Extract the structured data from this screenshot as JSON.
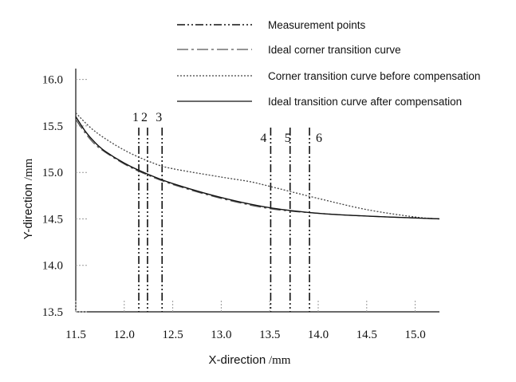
{
  "chart_data": {
    "type": "line",
    "title": "",
    "xlabel_main": "X-direction",
    "xlabel_unit": "/mm",
    "ylabel_main": "Y-direction",
    "ylabel_unit": "/mm",
    "xlim": [
      11.5,
      15.25
    ],
    "ylim": [
      13.5,
      16.1
    ],
    "x_ticks": [
      11.5,
      12.0,
      12.5,
      13.0,
      13.5,
      14.0,
      14.5,
      15.0
    ],
    "x_tick_labels": [
      "11.5",
      "12.0",
      "12.5",
      "13.0",
      "13.5",
      "14.0",
      "14.5",
      "15.0"
    ],
    "y_ticks": [
      13.5,
      14.0,
      14.5,
      15.0,
      15.5,
      16.0
    ],
    "y_tick_labels": [
      "13.5",
      "14.0",
      "14.5",
      "15.0",
      "15.5",
      "16.0"
    ],
    "grid": false,
    "legend_position": "top",
    "series": [
      {
        "name": "Measurement points",
        "kind": "vlines",
        "color": "#111111",
        "labels": [
          "1",
          "2",
          "3",
          "4",
          "5",
          "6"
        ],
        "x": [
          12.15,
          12.24,
          12.39,
          13.51,
          13.71,
          13.91
        ]
      },
      {
        "name": "Ideal corner transition curve",
        "kind": "line",
        "style": "dashdot-long",
        "color": "#555555",
        "x": [
          11.5,
          11.6,
          11.7,
          11.8,
          12.0,
          12.2,
          12.5,
          13.0,
          13.5,
          14.0,
          14.5,
          15.0,
          15.25
        ],
        "y": [
          15.57,
          15.42,
          15.3,
          15.22,
          15.09,
          14.99,
          14.87,
          14.72,
          14.61,
          14.56,
          14.53,
          14.51,
          14.5
        ]
      },
      {
        "name": "Corner transition curve before compensation",
        "kind": "line",
        "style": "dotted",
        "color": "#444444",
        "x": [
          11.5,
          11.7,
          12.0,
          12.3,
          12.5,
          13.0,
          13.3,
          13.5,
          14.0,
          14.5,
          15.0,
          15.25
        ],
        "y": [
          15.64,
          15.44,
          15.24,
          15.1,
          15.04,
          14.95,
          14.9,
          14.85,
          14.72,
          14.6,
          14.52,
          14.5
        ]
      },
      {
        "name": "Ideal transition curve after compensation",
        "kind": "line",
        "style": "solid",
        "color": "#111111",
        "x": [
          11.5,
          11.6,
          11.7,
          11.8,
          12.0,
          12.2,
          12.5,
          13.0,
          13.5,
          14.0,
          14.5,
          15.0,
          15.25
        ],
        "y": [
          15.6,
          15.44,
          15.32,
          15.23,
          15.1,
          15.0,
          14.88,
          14.73,
          14.62,
          14.56,
          14.53,
          14.51,
          14.5
        ]
      }
    ]
  }
}
